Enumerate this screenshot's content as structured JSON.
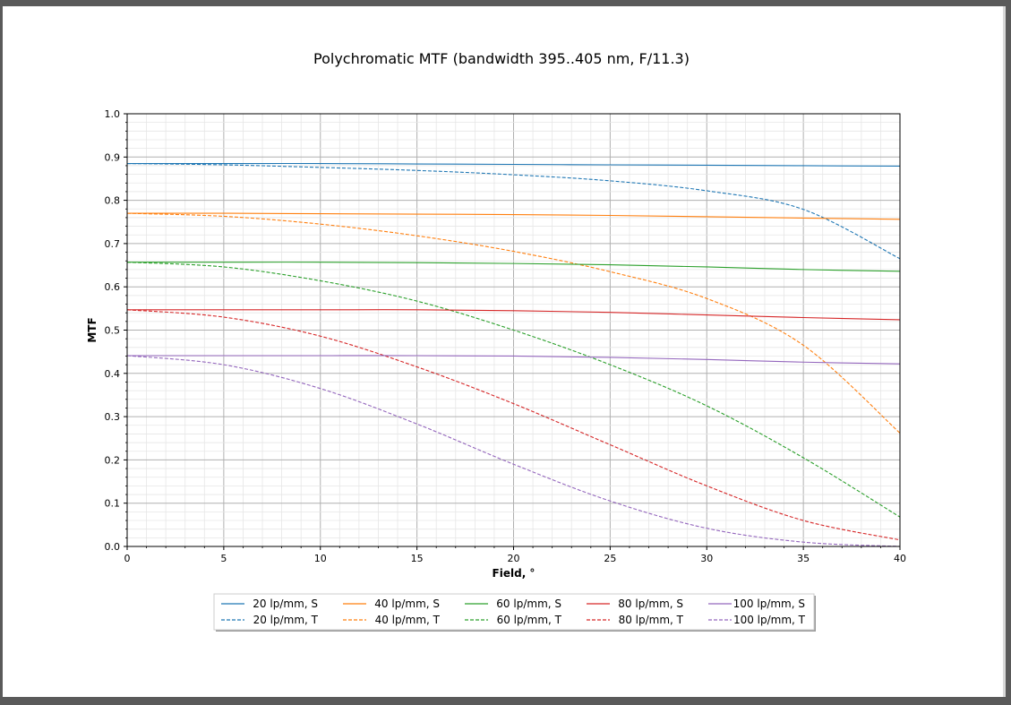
{
  "chart_data": {
    "type": "line",
    "title": "Polychromatic MTF (bandwidth 395..405 nm, F/11.3)",
    "xlabel": "Field, °",
    "ylabel": "MTF",
    "xlim": [
      0,
      40
    ],
    "ylim": [
      0,
      1.0
    ],
    "x_ticks": [
      "0",
      "5",
      "10",
      "15",
      "20",
      "25",
      "30",
      "35",
      "40"
    ],
    "y_ticks": [
      "0.0",
      "0.1",
      "0.2",
      "0.3",
      "0.4",
      "0.5",
      "0.6",
      "0.7",
      "0.8",
      "0.9",
      "1.0"
    ],
    "grid": true,
    "minor_grid": true,
    "legend_placement": "bottom-center",
    "x": [
      0,
      5,
      10,
      15,
      20,
      25,
      30,
      35,
      40
    ],
    "series": [
      {
        "name": "20 lp/mm, S",
        "color": "#1f77b4",
        "style": "solid",
        "values": [
          0.885,
          0.885,
          0.885,
          0.884,
          0.883,
          0.882,
          0.881,
          0.88,
          0.879
        ]
      },
      {
        "name": "20 lp/mm, T",
        "color": "#1f77b4",
        "style": "dashed",
        "values": [
          0.885,
          0.882,
          0.876,
          0.869,
          0.859,
          0.845,
          0.822,
          0.779,
          0.665
        ]
      },
      {
        "name": "40 lp/mm, S",
        "color": "#ff7f0e",
        "style": "solid",
        "values": [
          0.77,
          0.77,
          0.769,
          0.768,
          0.767,
          0.765,
          0.762,
          0.759,
          0.756
        ]
      },
      {
        "name": "40 lp/mm, T",
        "color": "#ff7f0e",
        "style": "dashed",
        "values": [
          0.77,
          0.763,
          0.745,
          0.718,
          0.682,
          0.635,
          0.573,
          0.465,
          0.262
        ]
      },
      {
        "name": "60 lp/mm, S",
        "color": "#2ca02c",
        "style": "solid",
        "values": [
          0.657,
          0.657,
          0.657,
          0.656,
          0.654,
          0.651,
          0.646,
          0.64,
          0.636
        ]
      },
      {
        "name": "60 lp/mm, T",
        "color": "#2ca02c",
        "style": "dashed",
        "values": [
          0.657,
          0.646,
          0.614,
          0.567,
          0.5,
          0.42,
          0.325,
          0.205,
          0.068
        ]
      },
      {
        "name": "80 lp/mm, S",
        "color": "#d62728",
        "style": "solid",
        "values": [
          0.547,
          0.547,
          0.547,
          0.547,
          0.545,
          0.541,
          0.535,
          0.529,
          0.524
        ]
      },
      {
        "name": "80 lp/mm, T",
        "color": "#d62728",
        "style": "dashed",
        "values": [
          0.547,
          0.53,
          0.486,
          0.415,
          0.33,
          0.235,
          0.14,
          0.06,
          0.015
        ]
      },
      {
        "name": "100 lp/mm, S",
        "color": "#9467bd",
        "style": "solid",
        "values": [
          0.441,
          0.441,
          0.441,
          0.441,
          0.44,
          0.437,
          0.432,
          0.426,
          0.422
        ]
      },
      {
        "name": "100 lp/mm, T",
        "color": "#9467bd",
        "style": "dashed",
        "values": [
          0.441,
          0.42,
          0.365,
          0.283,
          0.19,
          0.105,
          0.042,
          0.01,
          0.0
        ]
      }
    ]
  }
}
